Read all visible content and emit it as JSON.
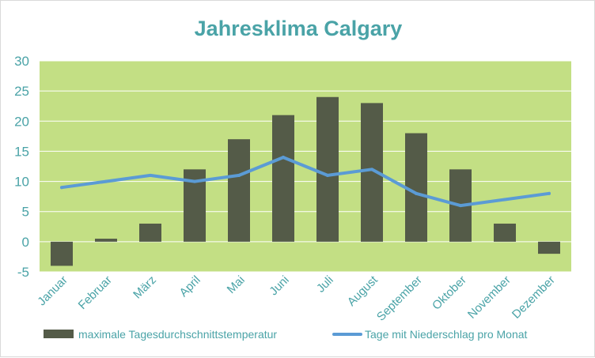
{
  "colors": {
    "plot_background": "#c3df84",
    "bar": "#545b48",
    "line": "#5b9bd5",
    "text": "#4aa3a7",
    "gridline": "#ffffff"
  },
  "chart_data": {
    "type": "bar",
    "title": "Jahresklima Calgary",
    "categories": [
      "Januar",
      "Februar",
      "März",
      "April",
      "Mai",
      "Juni",
      "Juli",
      "August",
      "September",
      "Oktober",
      "November",
      "Dezember"
    ],
    "series": [
      {
        "name": "maximale Tagesdurchschnittstemperatur",
        "type": "bar",
        "values": [
          -4,
          0.5,
          3,
          12,
          17,
          21,
          24,
          23,
          18,
          12,
          3,
          -2
        ]
      },
      {
        "name": "Tage mit Niederschlag pro Monat",
        "type": "line",
        "values": [
          9,
          10,
          11,
          10,
          11,
          14,
          11,
          12,
          8,
          6,
          7,
          8
        ]
      }
    ],
    "yticks": [
      -5,
      0,
      5,
      10,
      15,
      20,
      25,
      30
    ],
    "ylim": [
      -5,
      30
    ],
    "grid": true,
    "legend": "bottom"
  }
}
